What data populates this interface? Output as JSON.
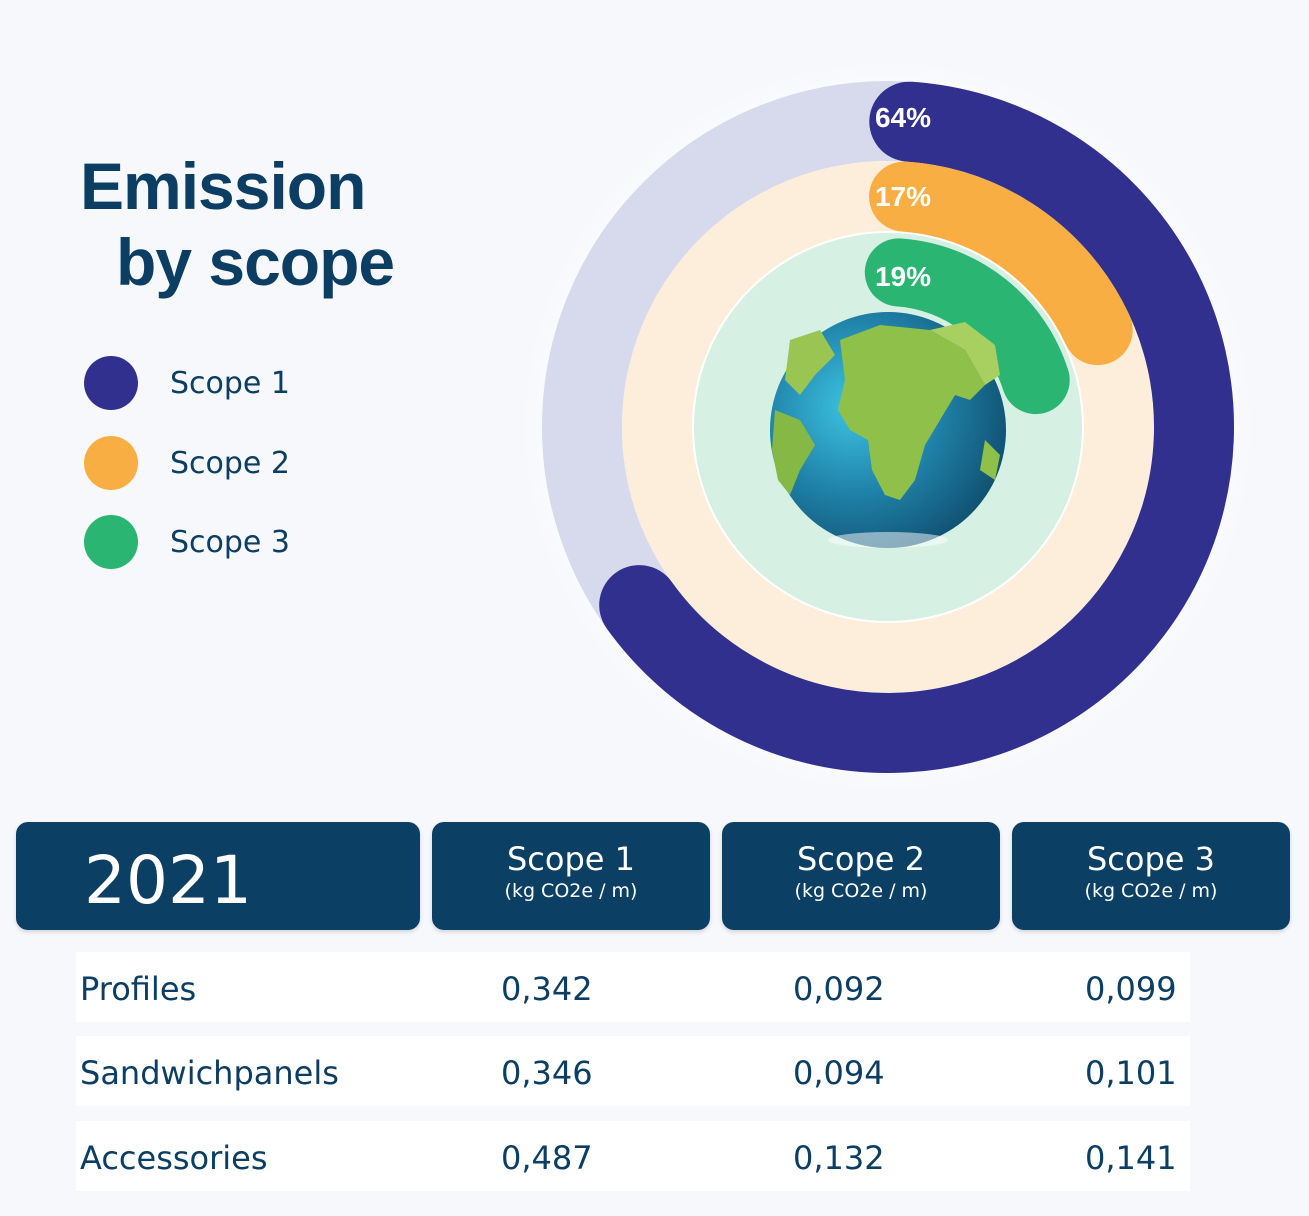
{
  "title": {
    "line1": "Emission",
    "line2": "by scope"
  },
  "colors": {
    "scope1": "#31308e",
    "scope2": "#f9ae43",
    "scope3": "#2bb573",
    "scope1_track": "#d7d9ec",
    "scope2_track": "#fdeedb",
    "scope3_track": "#d6f0e3",
    "header_bg": "#0b3f63",
    "text": "#0c3d63"
  },
  "legend": [
    {
      "label": "Scope 1",
      "color": "#31308e"
    },
    {
      "label": "Scope 2",
      "color": "#f9ae43"
    },
    {
      "label": "Scope 3",
      "color": "#2bb573"
    }
  ],
  "chart_data": {
    "type": "radial-bar",
    "title": "Emission by scope",
    "categories": [
      "Scope 1",
      "Scope 2",
      "Scope 3"
    ],
    "values": [
      64,
      17,
      19
    ],
    "labels": [
      "64%",
      "17%",
      "19%"
    ],
    "center_image": "globe"
  },
  "table": {
    "year": "2021",
    "columns": [
      {
        "name": "Scope 1",
        "unit": "(kg CO2e / m)"
      },
      {
        "name": "Scope 2",
        "unit": "(kg CO2e / m)"
      },
      {
        "name": "Scope 3",
        "unit": "(kg CO2e / m)"
      }
    ],
    "rows": [
      {
        "label": "Profiles",
        "values": [
          "0,342",
          "0,092",
          "0,099"
        ]
      },
      {
        "label": "Sandwichpanels",
        "values": [
          "0,346",
          "0,094",
          "0,101"
        ]
      },
      {
        "label": "Accessories",
        "values": [
          "0,487",
          "0,132",
          "0,141"
        ]
      }
    ]
  }
}
